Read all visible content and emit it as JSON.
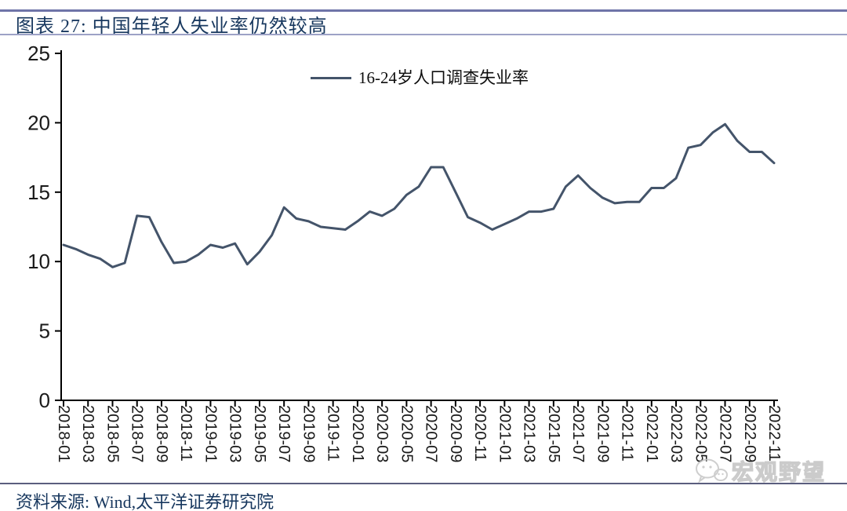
{
  "figure": {
    "title": "图表 27: 中国年轻人失业率仍然较高",
    "source_note": "资料来源: Wind,太平洋证券研究院",
    "watermark_text": "宏观野望"
  },
  "colors": {
    "accent_rule": "#6F74A8",
    "title_text": "#17375E",
    "series_line": "#44546A",
    "axis": "#000000",
    "tick_label": "#1a1a1a",
    "watermark": "#c3c3c3"
  },
  "chart_data": {
    "type": "line",
    "title": "",
    "xlabel": "",
    "ylabel": "",
    "ylim": [
      0,
      25
    ],
    "y_ticks": [
      0,
      5,
      10,
      15,
      20,
      25
    ],
    "x_tick_every": 2,
    "grid": false,
    "legend_position": "top-center",
    "categories": [
      "2018-01",
      "2018-02",
      "2018-03",
      "2018-04",
      "2018-05",
      "2018-06",
      "2018-07",
      "2018-08",
      "2018-09",
      "2018-10",
      "2018-11",
      "2018-12",
      "2019-01",
      "2019-02",
      "2019-03",
      "2019-04",
      "2019-05",
      "2019-06",
      "2019-07",
      "2019-08",
      "2019-09",
      "2019-10",
      "2019-11",
      "2019-12",
      "2020-01",
      "2020-02",
      "2020-03",
      "2020-04",
      "2020-05",
      "2020-06",
      "2020-07",
      "2020-08",
      "2020-09",
      "2020-10",
      "2020-11",
      "2020-12",
      "2021-01",
      "2021-02",
      "2021-03",
      "2021-04",
      "2021-05",
      "2021-06",
      "2021-07",
      "2021-08",
      "2021-09",
      "2021-10",
      "2021-11",
      "2021-12",
      "2022-01",
      "2022-02",
      "2022-03",
      "2022-04",
      "2022-05",
      "2022-06",
      "2022-07",
      "2022-08",
      "2022-09",
      "2022-10",
      "2022-11"
    ],
    "series": [
      {
        "name": "16-24岁人口调查失业率",
        "values": [
          11.2,
          10.9,
          10.5,
          10.2,
          9.6,
          9.9,
          13.3,
          13.2,
          11.4,
          9.9,
          10.0,
          10.5,
          11.2,
          11.0,
          11.3,
          9.8,
          10.7,
          11.9,
          13.9,
          13.1,
          12.9,
          12.5,
          12.4,
          12.3,
          12.9,
          13.6,
          13.3,
          13.8,
          14.8,
          15.4,
          16.8,
          16.8,
          15.0,
          13.2,
          12.8,
          12.3,
          12.7,
          13.1,
          13.6,
          13.6,
          13.8,
          15.4,
          16.2,
          15.3,
          14.6,
          14.2,
          14.3,
          14.3,
          15.3,
          15.3,
          16.0,
          18.2,
          18.4,
          19.3,
          19.9,
          18.7,
          17.9,
          17.9,
          17.1
        ]
      }
    ]
  }
}
